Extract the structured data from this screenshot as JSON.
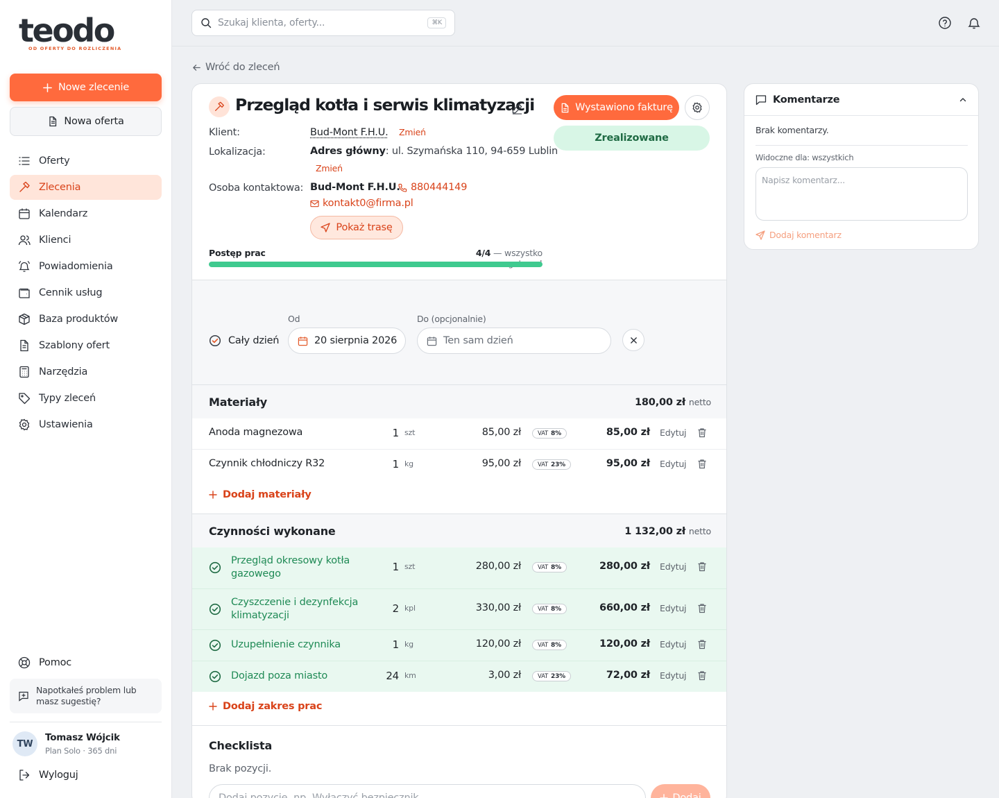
{
  "brand": {
    "logo_text": "teodo",
    "tagline": "OD OFERTY DO ROZLICZENIA",
    "accent": "#ff6a3d"
  },
  "sidebar": {
    "new_order": "Nowe zlecenie",
    "new_offer": "Nowa oferta",
    "items": [
      {
        "label": "Oferty",
        "icon": "list-icon"
      },
      {
        "label": "Zlecenia",
        "icon": "hammer-icon",
        "active": true
      },
      {
        "label": "Kalendarz",
        "icon": "calendar-icon"
      },
      {
        "label": "Klienci",
        "icon": "users-icon"
      },
      {
        "label": "Powiadomienia",
        "icon": "bell-ring-icon"
      },
      {
        "label": "Cennik usług",
        "icon": "wallet-icon"
      },
      {
        "label": "Baza produktów",
        "icon": "package-icon"
      },
      {
        "label": "Szablony ofert",
        "icon": "file-icon"
      },
      {
        "label": "Narzędzia",
        "icon": "calculator-icon"
      },
      {
        "label": "Typy zleceń",
        "icon": "tag-icon"
      },
      {
        "label": "Ustawienia",
        "icon": "settings-icon"
      }
    ],
    "help": "Pomoc",
    "feedback": "Napotkałeś problem lub masz sugestię?",
    "user": {
      "initials": "TW",
      "name": "Tomasz Wójcik",
      "plan": "Plan Solo · 365 dni"
    },
    "logout": "Wyloguj"
  },
  "topbar": {
    "search_placeholder": "Szukaj klienta, oferty...",
    "shortcut": "⌘K"
  },
  "back_link": "Wróć do zleceń",
  "order": {
    "title": "Przegląd kotła i serwis klimatyzacji",
    "client_label": "Klient:",
    "client": "Bud-Mont F.H.U.",
    "change": "Zmień",
    "location_label": "Lokalizacja:",
    "location_name": "Adres główny",
    "location_address": ": ul. Szymańska 110, 94-659 Lublin",
    "contact_label": "Osoba kontaktowa:",
    "contact_name": "Bud-Mont F.H.U.",
    "phone": "880444149",
    "email": "kontakt0@firma.pl",
    "route_button": "Pokaż trasę",
    "invoice_button": "Wystawiono fakturę",
    "status": "Zrealizowane",
    "progress_label": "Postęp prac",
    "progress_count": "4/4",
    "progress_text": " — wszystko gotowe!",
    "progress_fraction": 1.0
  },
  "dates": {
    "all_day": "Cały dzień",
    "from_label": "Od",
    "from_value": "20 sierpnia 2026",
    "to_label": "Do (opcjonalnie)",
    "to_placeholder": "Ten sam dzień"
  },
  "materials": {
    "title": "Materiały",
    "total": "180,00 zł",
    "net": "netto",
    "add": "Dodaj materiały",
    "items": [
      {
        "name": "Anoda magnezowa",
        "qty": "1",
        "unit": "szt",
        "price": "85,00 zł",
        "vat": "8%",
        "total": "85,00 zł"
      },
      {
        "name": "Czynnik chłodniczy R32",
        "qty": "1",
        "unit": "kg",
        "price": "95,00 zł",
        "vat": "23%",
        "total": "95,00 zł"
      }
    ]
  },
  "services": {
    "title": "Czynności wykonane",
    "total": "1 132,00 zł",
    "net": "netto",
    "add": "Dodaj zakres prac",
    "items": [
      {
        "name": "Przegląd okresowy kotła gazowego",
        "qty": "1",
        "unit": "szt",
        "price": "280,00 zł",
        "vat": "8%",
        "total": "280,00 zł"
      },
      {
        "name": "Czyszczenie i dezynfekcja klimatyzacji",
        "qty": "2",
        "unit": "kpl",
        "price": "330,00 zł",
        "vat": "8%",
        "total": "660,00 zł"
      },
      {
        "name": "Uzupełnienie czynnika",
        "qty": "1",
        "unit": "kg",
        "price": "120,00 zł",
        "vat": "8%",
        "total": "120,00 zł"
      },
      {
        "name": "Dojazd poza miasto",
        "qty": "24",
        "unit": "km",
        "price": "3,00 zł",
        "vat": "23%",
        "total": "72,00 zł"
      }
    ]
  },
  "row_labels": {
    "vat": "VAT",
    "edit": "Edytuj"
  },
  "checklist": {
    "title": "Checklista",
    "empty": "Brak pozycji.",
    "placeholder": "Dodaj pozycję, np. Wyłączyć bezpiecznik",
    "add": "Dodaj"
  },
  "comments": {
    "title": "Komentarze",
    "empty": "Brak komentarzy.",
    "visibility": "Widoczne dla: wszystkich",
    "placeholder": "Napisz komentarz...",
    "add": "Dodaj komentarz"
  }
}
